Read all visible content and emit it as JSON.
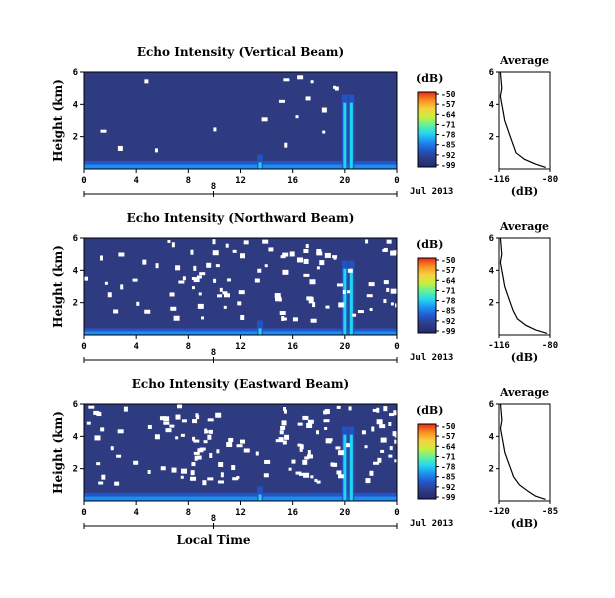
{
  "figure": {
    "x_axis_title": "Local Time",
    "date_label": "Jul 2013",
    "day_label": "8",
    "colorbar_unit": "(dB)",
    "colors": {
      "background": "#2e3b80",
      "colorscale": [
        "#202a78",
        "#2e3b80",
        "#2255c8",
        "#1e8cf0",
        "#22d6f0",
        "#60f0a0",
        "#c8f03c",
        "#f8d040",
        "#f89020",
        "#e82818"
      ]
    }
  },
  "chart_data": [
    {
      "type": "heatmap",
      "title": "Echo Intensity (Vertical Beam)",
      "xlabel": "",
      "ylabel": "Height (km)",
      "xlim": [
        0,
        24
      ],
      "ylim": [
        0,
        6
      ],
      "x_ticks": [
        "0",
        "4",
        "8",
        "12",
        "16",
        "20",
        "0"
      ],
      "y_ticks": [
        "2",
        "4",
        "6"
      ],
      "colorbar": {
        "unit": "(dB)",
        "ticks": [
          "-50",
          "-57",
          "-64",
          "-71",
          "-78",
          "-85",
          "-92",
          "-99"
        ]
      },
      "features": {
        "surface_echo_top_km": 0.5,
        "strong_echo_time_h": [
          13.5,
          20.0,
          20.5
        ],
        "missing_data_fraction": "low"
      }
    },
    {
      "type": "line",
      "title": "Average",
      "xlabel": "(dB)",
      "ylabel": "",
      "xlim": [
        -116,
        -80
      ],
      "ylim": [
        0,
        6
      ],
      "x_ticks": [
        "-116",
        "-80"
      ],
      "y_ticks": [
        "2",
        "4",
        "6"
      ],
      "series": [
        {
          "x": [
            -83,
            -90,
            -98,
            -104,
            -106,
            -108,
            -110,
            -112,
            -113,
            -114,
            -115,
            -114,
            -115
          ],
          "y": [
            0.1,
            0.3,
            0.6,
            1.0,
            1.5,
            2.0,
            2.5,
            3.0,
            3.5,
            4.0,
            4.5,
            5.0,
            6.0
          ]
        }
      ]
    },
    {
      "type": "heatmap",
      "title": "Echo Intensity (Northward Beam)",
      "xlabel": "",
      "ylabel": "Height (km)",
      "xlim": [
        0,
        24
      ],
      "ylim": [
        0,
        6
      ],
      "x_ticks": [
        "0",
        "4",
        "8",
        "12",
        "16",
        "20",
        "0"
      ],
      "y_ticks": [
        "2",
        "4",
        "6"
      ],
      "colorbar": {
        "unit": "(dB)",
        "ticks": [
          "-50",
          "-57",
          "-64",
          "-71",
          "-78",
          "-85",
          "-92",
          "-99"
        ]
      },
      "features": {
        "surface_echo_top_km": 0.4,
        "strong_echo_time_h": [
          13.5,
          20.0,
          20.5
        ],
        "missing_data_fraction": "moderate"
      }
    },
    {
      "type": "line",
      "title": "Average",
      "xlabel": "(dB)",
      "ylabel": "",
      "xlim": [
        -116,
        -80
      ],
      "ylim": [
        0,
        6
      ],
      "x_ticks": [
        "-116",
        "-80"
      ],
      "y_ticks": [
        "2",
        "4",
        "6"
      ],
      "series": [
        {
          "x": [
            -82,
            -90,
            -97,
            -103,
            -106,
            -108,
            -110,
            -112,
            -113,
            -114,
            -115,
            -114,
            -115
          ],
          "y": [
            0.1,
            0.3,
            0.6,
            1.0,
            1.5,
            2.0,
            2.5,
            3.0,
            3.5,
            4.0,
            4.5,
            5.0,
            6.0
          ]
        }
      ]
    },
    {
      "type": "heatmap",
      "title": "Echo Intensity (Eastward Beam)",
      "xlabel": "Local Time",
      "ylabel": "Height (km)",
      "xlim": [
        0,
        24
      ],
      "ylim": [
        0,
        6
      ],
      "x_ticks": [
        "0",
        "4",
        "8",
        "12",
        "16",
        "20",
        "0"
      ],
      "y_ticks": [
        "2",
        "4",
        "6"
      ],
      "colorbar": {
        "unit": "(dB)",
        "ticks": [
          "-50",
          "-57",
          "-64",
          "-71",
          "-78",
          "-85",
          "-92",
          "-99"
        ]
      },
      "features": {
        "surface_echo_top_km": 0.5,
        "strong_echo_time_h": [
          13.5,
          20.0,
          20.5
        ],
        "missing_data_fraction": "moderate"
      }
    },
    {
      "type": "line",
      "title": "Average",
      "xlabel": "(dB)",
      "ylabel": "",
      "xlim": [
        -120,
        -85
      ],
      "ylim": [
        0,
        6
      ],
      "x_ticks": [
        "-120",
        "-85"
      ],
      "y_ticks": [
        "2",
        "4",
        "6"
      ],
      "series": [
        {
          "x": [
            -88,
            -95,
            -100,
            -106,
            -110,
            -112,
            -114,
            -116,
            -117,
            -118,
            -119,
            -118,
            -119
          ],
          "y": [
            0.1,
            0.3,
            0.6,
            1.0,
            1.5,
            2.0,
            2.5,
            3.0,
            3.5,
            4.0,
            4.5,
            5.0,
            6.0
          ]
        }
      ]
    }
  ]
}
